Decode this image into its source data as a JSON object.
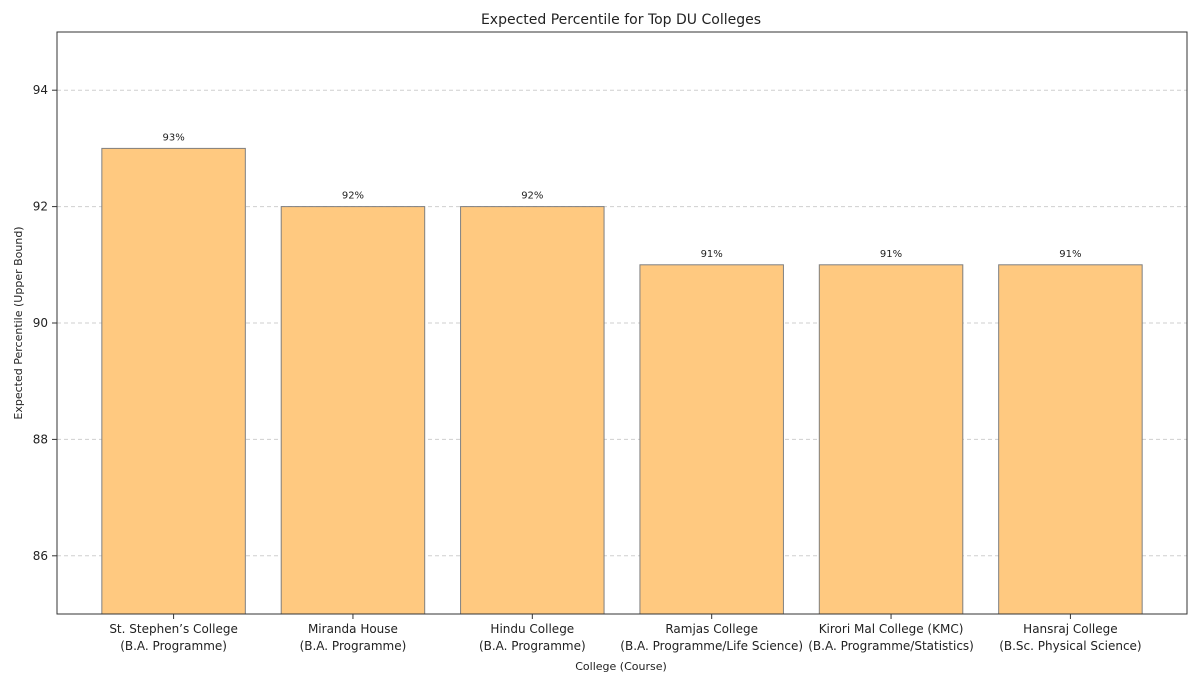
{
  "chart_data": {
    "type": "bar",
    "title": "Expected Percentile for Top DU Colleges",
    "xlabel": "College (Course)",
    "ylabel": "Expected Percentile (Upper Bound)",
    "ylim": [
      85,
      95
    ],
    "yticks": [
      86,
      88,
      90,
      92,
      94
    ],
    "grid": "horizontal-dashed",
    "categories": [
      [
        "St. Stephen’s College",
        "(B.A. Programme)"
      ],
      [
        "Miranda House",
        "(B.A. Programme)"
      ],
      [
        "Hindu College",
        "(B.A. Programme)"
      ],
      [
        "Ramjas College",
        "(B.A. Programme/Life Science)"
      ],
      [
        "Kirori Mal College (KMC)",
        "(B.A. Programme/Statistics)"
      ],
      [
        "Hansraj College",
        "(B.Sc. Physical Science)"
      ]
    ],
    "values": [
      93,
      92,
      92,
      91,
      91,
      91
    ],
    "data_labels": [
      "93%",
      "92%",
      "92%",
      "91%",
      "91%",
      "91%"
    ],
    "colors": {
      "bar": "#ffc980",
      "bar_edge": "#7f7f7f"
    }
  }
}
